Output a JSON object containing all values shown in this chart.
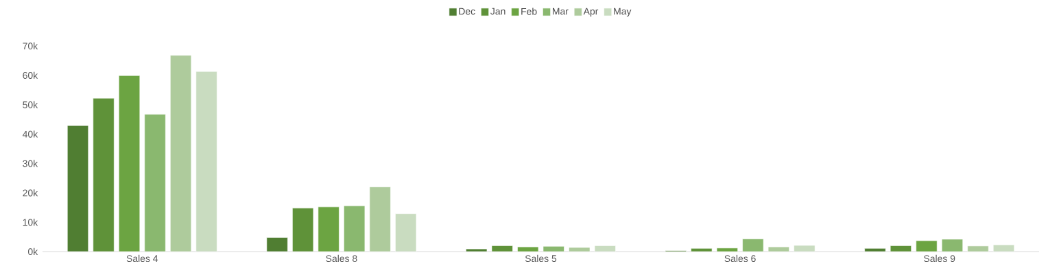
{
  "chart_data": {
    "type": "bar",
    "categories": [
      "Sales 4",
      "Sales 8",
      "Sales 5",
      "Sales 6",
      "Sales 9"
    ],
    "series": [
      {
        "name": "Dec",
        "color": "#507e32",
        "values": [
          42.9,
          4.8,
          0.9,
          0.3,
          1.1
        ]
      },
      {
        "name": "Jan",
        "color": "#5f9239",
        "values": [
          52.2,
          14.8,
          2.0,
          1.1,
          2.0
        ]
      },
      {
        "name": "Feb",
        "color": "#6ca442",
        "values": [
          59.9,
          15.2,
          1.6,
          1.2,
          3.7
        ]
      },
      {
        "name": "Mar",
        "color": "#8ab86f",
        "values": [
          46.7,
          15.6,
          1.8,
          4.3,
          4.2
        ]
      },
      {
        "name": "Apr",
        "color": "#aecb9c",
        "values": [
          66.8,
          22.0,
          1.4,
          1.6,
          1.9
        ]
      },
      {
        "name": "May",
        "color": "#c9dcc0",
        "values": [
          61.3,
          12.9,
          2.0,
          2.1,
          2.3
        ]
      }
    ],
    "ylim": [
      0,
      70
    ],
    "yticks": [
      {
        "value": 0,
        "label": "0k"
      },
      {
        "value": 10,
        "label": "10k"
      },
      {
        "value": 20,
        "label": "20k"
      },
      {
        "value": 30,
        "label": "30k"
      },
      {
        "value": 40,
        "label": "40k"
      },
      {
        "value": 50,
        "label": "50k"
      },
      {
        "value": 60,
        "label": "60k"
      },
      {
        "value": 70,
        "label": "70k"
      }
    ],
    "grid": false,
    "legend": "top"
  }
}
